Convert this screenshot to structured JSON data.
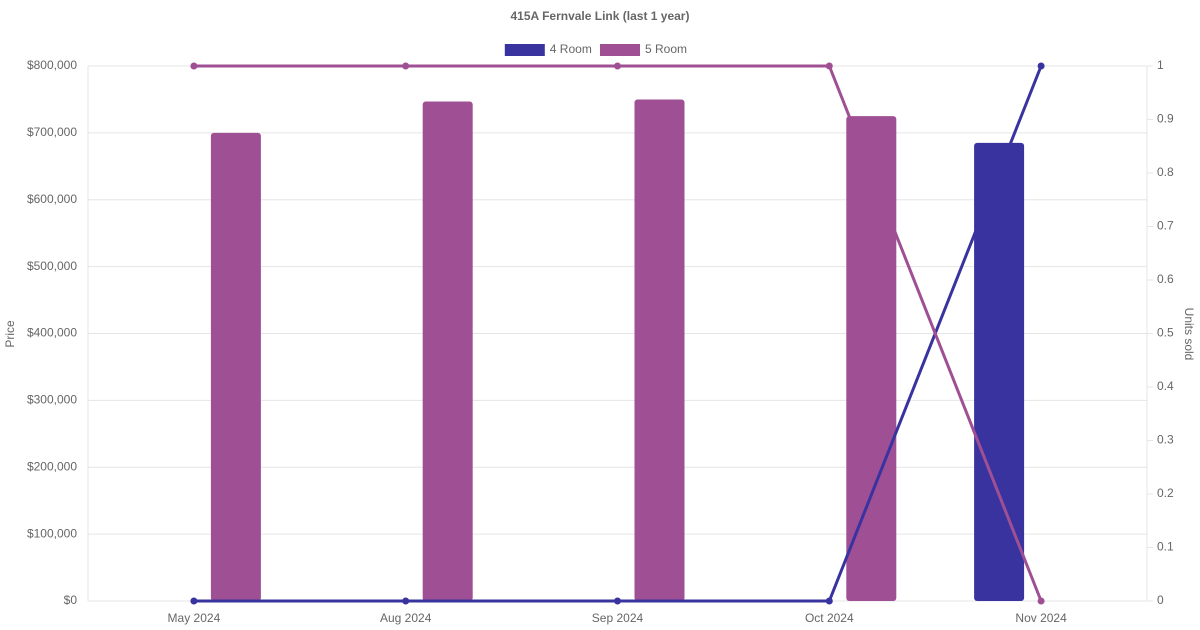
{
  "chart_data": {
    "type": "bar",
    "title": "415A Fernvale Link (last 1 year)",
    "y_label": "Price",
    "y2_label": "Units sold",
    "categories": [
      "May 2024",
      "Aug 2024",
      "Sep 2024",
      "Oct 2024",
      "Nov 2024"
    ],
    "series": [
      {
        "name": "4 Room",
        "color": "#3933a0",
        "type": "bar",
        "values": [
          null,
          null,
          null,
          null,
          685000
        ]
      },
      {
        "name": "5 Room",
        "color": "#9f4f93",
        "type": "bar",
        "values": [
          700000,
          747000,
          750000,
          725000,
          null
        ]
      },
      {
        "color": "#3933a0",
        "type": "line",
        "axis": "y2",
        "values": [
          0,
          0,
          0,
          0,
          1
        ]
      },
      {
        "color": "#9f4f93",
        "type": "line",
        "axis": "y2",
        "values": [
          1,
          1,
          1,
          1,
          0
        ]
      }
    ],
    "ylim": [
      0,
      800000
    ],
    "yticks": [
      {
        "value": 0,
        "label": "$0"
      },
      {
        "value": 100000,
        "label": "$100,000"
      },
      {
        "value": 200000,
        "label": "$200,000"
      },
      {
        "value": 300000,
        "label": "$300,000"
      },
      {
        "value": 400000,
        "label": "$400,000"
      },
      {
        "value": 500000,
        "label": "$500,000"
      },
      {
        "value": 600000,
        "label": "$600,000"
      },
      {
        "value": 700000,
        "label": "$700,000"
      },
      {
        "value": 800000,
        "label": "$800,000"
      }
    ],
    "y2lim": [
      0,
      1
    ],
    "y2ticks": [
      0,
      0.1,
      0.2,
      0.3,
      0.4,
      0.5,
      0.6,
      0.7,
      0.8,
      0.9,
      1
    ],
    "grid": true,
    "legend": "top"
  }
}
